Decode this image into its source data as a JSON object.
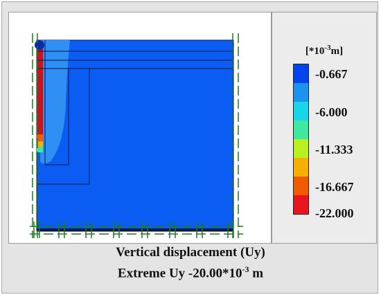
{
  "legend": {
    "unit": {
      "prefix": "[*10",
      "exponent": "-3",
      "suffix": "m]"
    },
    "ticks": [
      "-0.667",
      "-6.000",
      "-11.333",
      "-16.667",
      "-22.000"
    ],
    "colors": [
      "#0044ee",
      "#1a94ee",
      "#17d6e8",
      "#3ee89e",
      "#b8f022",
      "#f6b000",
      "#f25a00",
      "#e8141e"
    ]
  },
  "caption": {
    "line1": "Vertical displacement (Uy)",
    "line2_prefix": "Extreme Uy -20.00*10",
    "line2_exponent": "-3",
    "line2_suffix": " m"
  },
  "colors": {
    "soil_blue": "#0a5cf2",
    "band_light_blue": "#2f8ff5",
    "wall_red": "#c8141a",
    "boundary_green": "#1d7a1d",
    "mesh_line": "#06164d",
    "base_line": "#071b3a"
  }
}
